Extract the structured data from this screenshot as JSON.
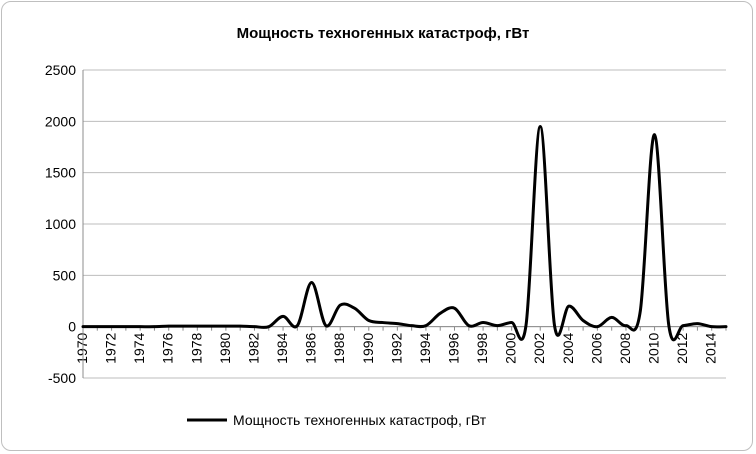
{
  "chart_data": {
    "type": "line",
    "title": "Мощность техногенных катастроф, гВт",
    "xlabel": "",
    "ylabel": "",
    "ylim": [
      -500,
      2500
    ],
    "yticks": [
      2500,
      2000,
      1500,
      1000,
      500,
      0,
      -500
    ],
    "yticks_text": [
      "2500",
      "2000",
      "1500",
      "1000",
      "500",
      "0",
      "-500"
    ],
    "xlim": [
      1970,
      2015
    ],
    "xticks": [
      "1970",
      "1972",
      "1974",
      "1976",
      "1978",
      "1980",
      "1982",
      "1984",
      "1986",
      "1988",
      "1990",
      "1992",
      "1994",
      "1996",
      "1998",
      "2000",
      "2002",
      "2004",
      "2006",
      "2008",
      "2010",
      "2012",
      "2014"
    ],
    "grid": "horizontal",
    "legend_position": "bottom",
    "line_color": "#000000",
    "series": [
      {
        "name": "Мощность техногенных катастроф, гВт",
        "x": [
          1970,
          1971,
          1972,
          1973,
          1974,
          1975,
          1976,
          1977,
          1978,
          1979,
          1980,
          1981,
          1982,
          1983,
          1984,
          1985,
          1986,
          1987,
          1988,
          1989,
          1990,
          1991,
          1992,
          1993,
          1994,
          1995,
          1996,
          1997,
          1998,
          1999,
          2000,
          2001,
          2002,
          2003,
          2004,
          2005,
          2006,
          2007,
          2008,
          2009,
          2010,
          2011,
          2012,
          2013,
          2014,
          2015
        ],
        "values": [
          0,
          0,
          0,
          0,
          0,
          0,
          5,
          5,
          5,
          5,
          5,
          5,
          0,
          0,
          100,
          10,
          430,
          10,
          210,
          180,
          60,
          40,
          30,
          10,
          10,
          130,
          180,
          10,
          40,
          10,
          40,
          10,
          1950,
          10,
          200,
          60,
          0,
          90,
          10,
          150,
          1870,
          10,
          10,
          30,
          0,
          0
        ]
      }
    ]
  }
}
